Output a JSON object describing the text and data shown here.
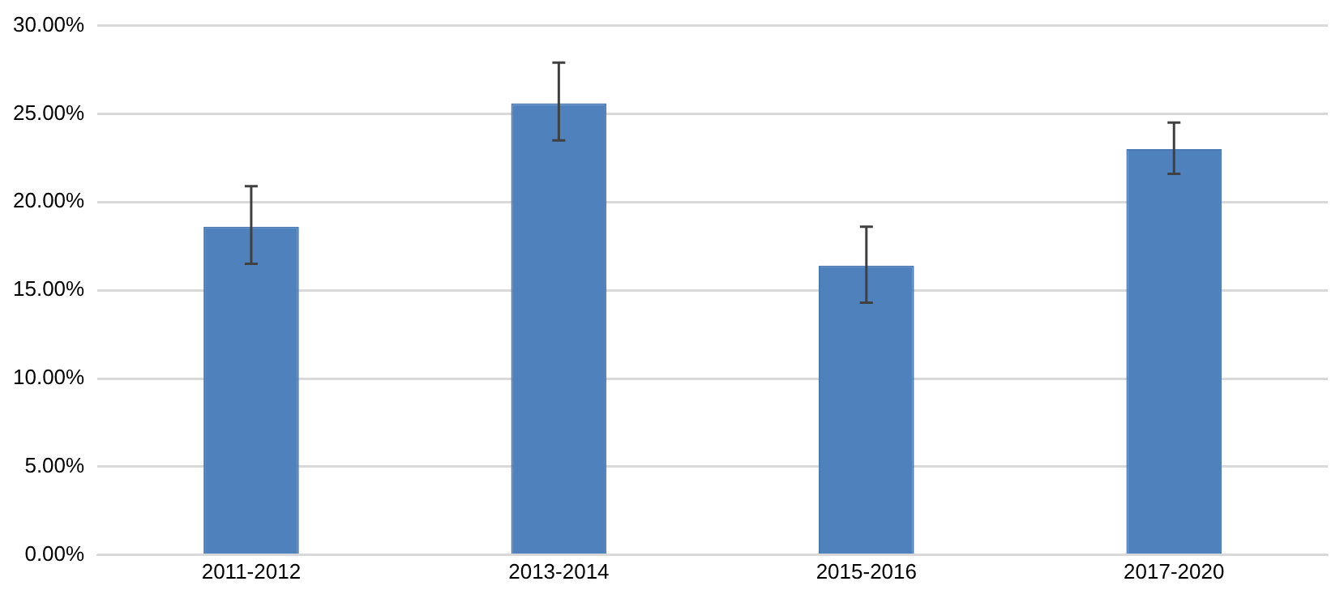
{
  "chart_data": {
    "type": "bar",
    "categories": [
      "2011-2012",
      "2013-2014",
      "2015-2016",
      "2017-2020"
    ],
    "values": [
      18.6,
      25.6,
      16.4,
      23.0
    ],
    "errors": [
      [
        16.5,
        20.9
      ],
      [
        23.5,
        27.9
      ],
      [
        14.3,
        18.6
      ],
      [
        21.6,
        24.5
      ]
    ],
    "color": "#4f81bd",
    "ylim": [
      0,
      30
    ],
    "yticks": [
      {
        "value": 0,
        "label": "0.00%"
      },
      {
        "value": 5,
        "label": "5.00%"
      },
      {
        "value": 10,
        "label": "10.00%"
      },
      {
        "value": 15,
        "label": "15.00%"
      },
      {
        "value": 20,
        "label": "20.00%"
      },
      {
        "value": 25,
        "label": "25.00%"
      },
      {
        "value": 30,
        "label": "30.00%"
      }
    ],
    "grid": "y",
    "legend": false
  }
}
